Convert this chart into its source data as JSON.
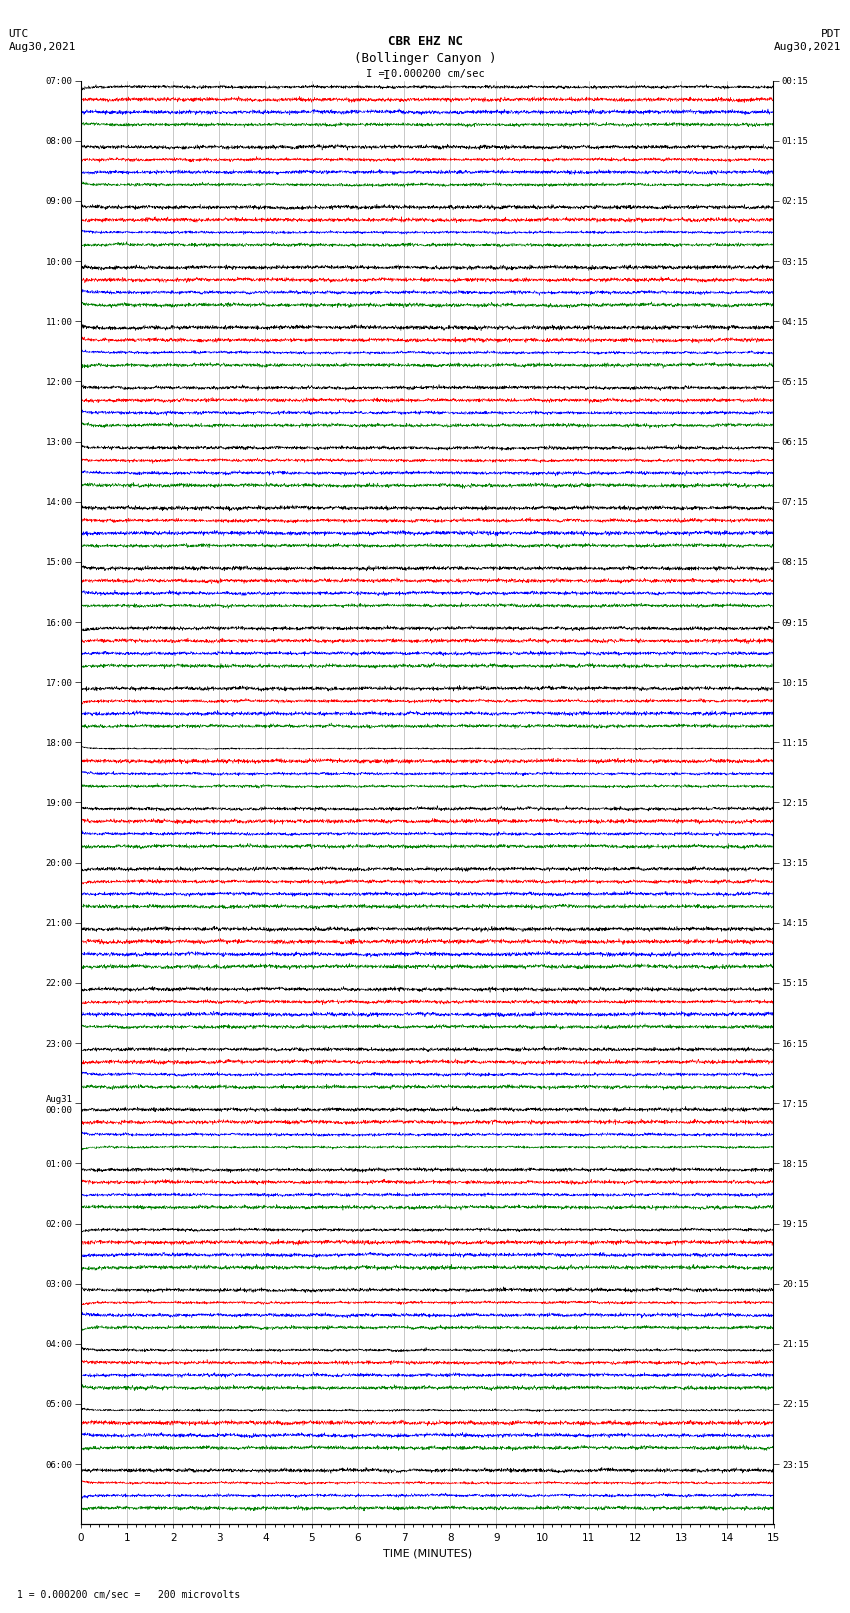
{
  "title_line1": "CBR EHZ NC",
  "title_line2": "(Bollinger Canyon )",
  "scale_label": "I = 0.000200 cm/sec",
  "left_header": "UTC\nAug30,2021",
  "right_header": "PDT\nAug30,2021",
  "xlabel": "TIME (MINUTES)",
  "footer": "1 = 0.000200 cm/sec =   200 microvolts",
  "bg_color": "#ffffff",
  "trace_colors": [
    "black",
    "red",
    "blue",
    "green"
  ],
  "total_minutes": 15,
  "fig_width": 8.5,
  "fig_height": 16.13,
  "dpi": 100,
  "num_hours": 24,
  "traces_per_hour": 4,
  "left_time_labels": [
    "07:00",
    "08:00",
    "09:00",
    "10:00",
    "11:00",
    "12:00",
    "13:00",
    "14:00",
    "15:00",
    "16:00",
    "17:00",
    "18:00",
    "19:00",
    "20:00",
    "21:00",
    "22:00",
    "23:00",
    "Aug31\n00:00",
    "01:00",
    "02:00",
    "03:00",
    "04:00",
    "05:00",
    "06:00"
  ],
  "right_time_labels": [
    "00:15",
    "01:15",
    "02:15",
    "03:15",
    "04:15",
    "05:15",
    "06:15",
    "07:15",
    "08:15",
    "09:15",
    "10:15",
    "11:15",
    "12:15",
    "13:15",
    "14:15",
    "15:15",
    "16:15",
    "17:15",
    "18:15",
    "19:15",
    "20:15",
    "21:15",
    "22:15",
    "23:15"
  ]
}
